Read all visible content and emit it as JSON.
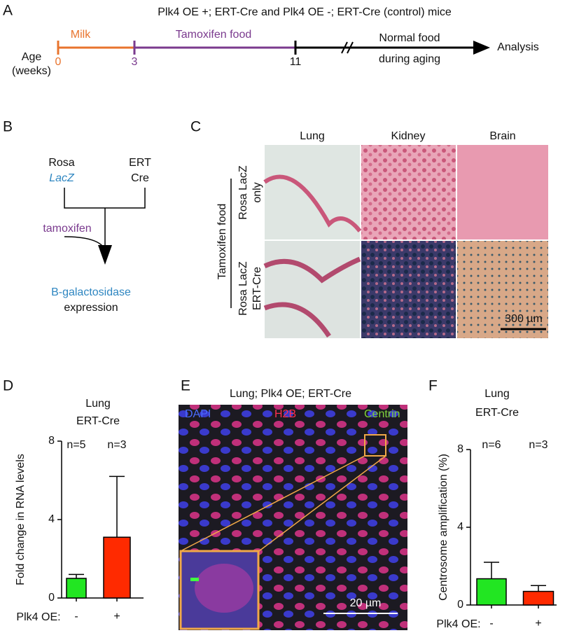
{
  "panel_labels": [
    "A",
    "B",
    "C",
    "D",
    "E",
    "F"
  ],
  "panel_a": {
    "title": "Plk4 OE +; ERT-Cre and Plk4 OE -; ERT-Cre (control) mice",
    "axis_label": [
      "Age",
      "(weeks)"
    ],
    "ticks": [
      "0",
      "3",
      "11"
    ],
    "phases": [
      "Milk",
      "Tamoxifen food"
    ],
    "later": [
      "Normal food",
      "during aging"
    ],
    "end": "Analysis"
  },
  "panel_b": {
    "left": [
      "Rosa",
      "LacZ"
    ],
    "right": [
      "ERT",
      "Cre"
    ],
    "agent": "tamoxifen",
    "product": [
      "B-galactosidase",
      "expression"
    ]
  },
  "panel_c": {
    "columns": [
      "Lung",
      "Kidney",
      "Brain"
    ],
    "group": "Tamoxifen food",
    "rows": [
      [
        "Rosa LacZ",
        "only"
      ],
      [
        "Rosa LacZ",
        "ERT-Cre"
      ]
    ],
    "scale": "300 µm"
  },
  "panel_e": {
    "title": "Lung; Plk4 OE; ERT-Cre",
    "channels": [
      "DAPI",
      "H2B",
      "Centrin"
    ],
    "scale": "20 µm"
  },
  "chart_data": [
    {
      "type": "bar",
      "title": [
        "Lung",
        "ERT-Cre"
      ],
      "ylabel": "Fold change in RNA levels",
      "xlabel": "Plk4 OE:",
      "categories": [
        "-",
        "+"
      ],
      "values": [
        1.0,
        3.1
      ],
      "errors": [
        0.2,
        3.1
      ],
      "colors": [
        "#22e622",
        "#ff2a00"
      ],
      "annotations": [
        "n=5",
        "n=3"
      ],
      "ylim": [
        0,
        8
      ],
      "yticks": [
        0,
        4,
        8
      ]
    },
    {
      "type": "bar",
      "title": [
        "Lung",
        "ERT-Cre"
      ],
      "ylabel": "Centrosome amplification (%)",
      "xlabel": "Plk4 OE:",
      "categories": [
        "-",
        "+"
      ],
      "values": [
        1.35,
        0.7
      ],
      "errors": [
        0.85,
        0.3
      ],
      "colors": [
        "#22e622",
        "#ff2a00"
      ],
      "annotations": [
        "n=6",
        "n=3"
      ],
      "ylim": [
        0,
        8
      ],
      "yticks": [
        0,
        4,
        8
      ]
    }
  ]
}
